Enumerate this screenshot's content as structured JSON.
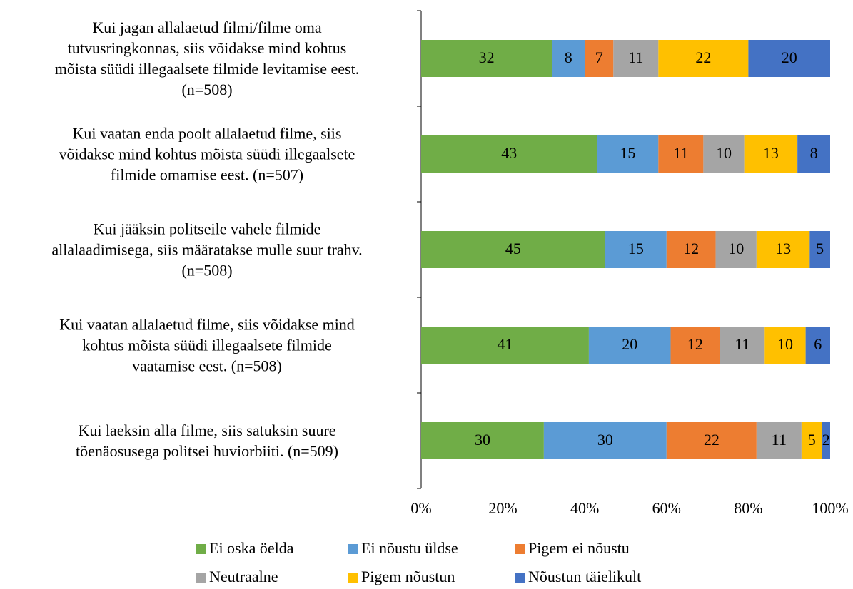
{
  "chart_data": {
    "type": "bar",
    "orientation": "horizontal",
    "stacked": true,
    "categories": [
      "Kui jagan allalaetud filmi/filme oma\ntutvusringkonnas, siis võidakse mind kohtus\nmõista süüdi illegaalsete filmide levitamise eest.\n(n=508)",
      "Kui vaatan enda poolt allalaetud filme, siis\nvõidakse mind kohtus mõista süüdi illegaalsete\nfilmide omamise eest. (n=507)",
      "Kui jääksin politseile vahele filmide\nallalaadimisega, siis määratakse mulle suur trahv.\n(n=508)",
      "Kui vaatan allalaetud filme, siis võidakse mind\nkohtus mõista süüdi illegaalsete filmide\nvaatamise eest. (n=508)",
      "Kui laeksin alla filme, siis satuksin suure\ntõenäosusega politsei huviorbiiti. (n=509)"
    ],
    "series": [
      {
        "name": "Ei oska öelda",
        "color": "#70ad47",
        "values": [
          32,
          43,
          45,
          41,
          30
        ]
      },
      {
        "name": "Ei nõustu üldse",
        "color": "#5b9bd5",
        "values": [
          8,
          15,
          15,
          20,
          30
        ]
      },
      {
        "name": "Pigem ei nõustu",
        "color": "#ed7d31",
        "values": [
          7,
          11,
          12,
          12,
          22
        ]
      },
      {
        "name": "Neutraalne",
        "color": "#a5a5a5",
        "values": [
          11,
          10,
          10,
          11,
          11
        ]
      },
      {
        "name": "Pigem nõustun",
        "color": "#ffc000",
        "values": [
          22,
          13,
          13,
          10,
          5
        ]
      },
      {
        "name": "Nõustun täielikult",
        "color": "#4472c4",
        "values": [
          20,
          8,
          5,
          6,
          2
        ]
      }
    ],
    "xlim": [
      0,
      100
    ],
    "xticks": [
      {
        "value": 0,
        "label": "0%"
      },
      {
        "value": 20,
        "label": "20%"
      },
      {
        "value": 40,
        "label": "40%"
      },
      {
        "value": 60,
        "label": "60%"
      },
      {
        "value": 80,
        "label": "80%"
      },
      {
        "value": 100,
        "label": "100%"
      }
    ],
    "legend": "bottom"
  }
}
